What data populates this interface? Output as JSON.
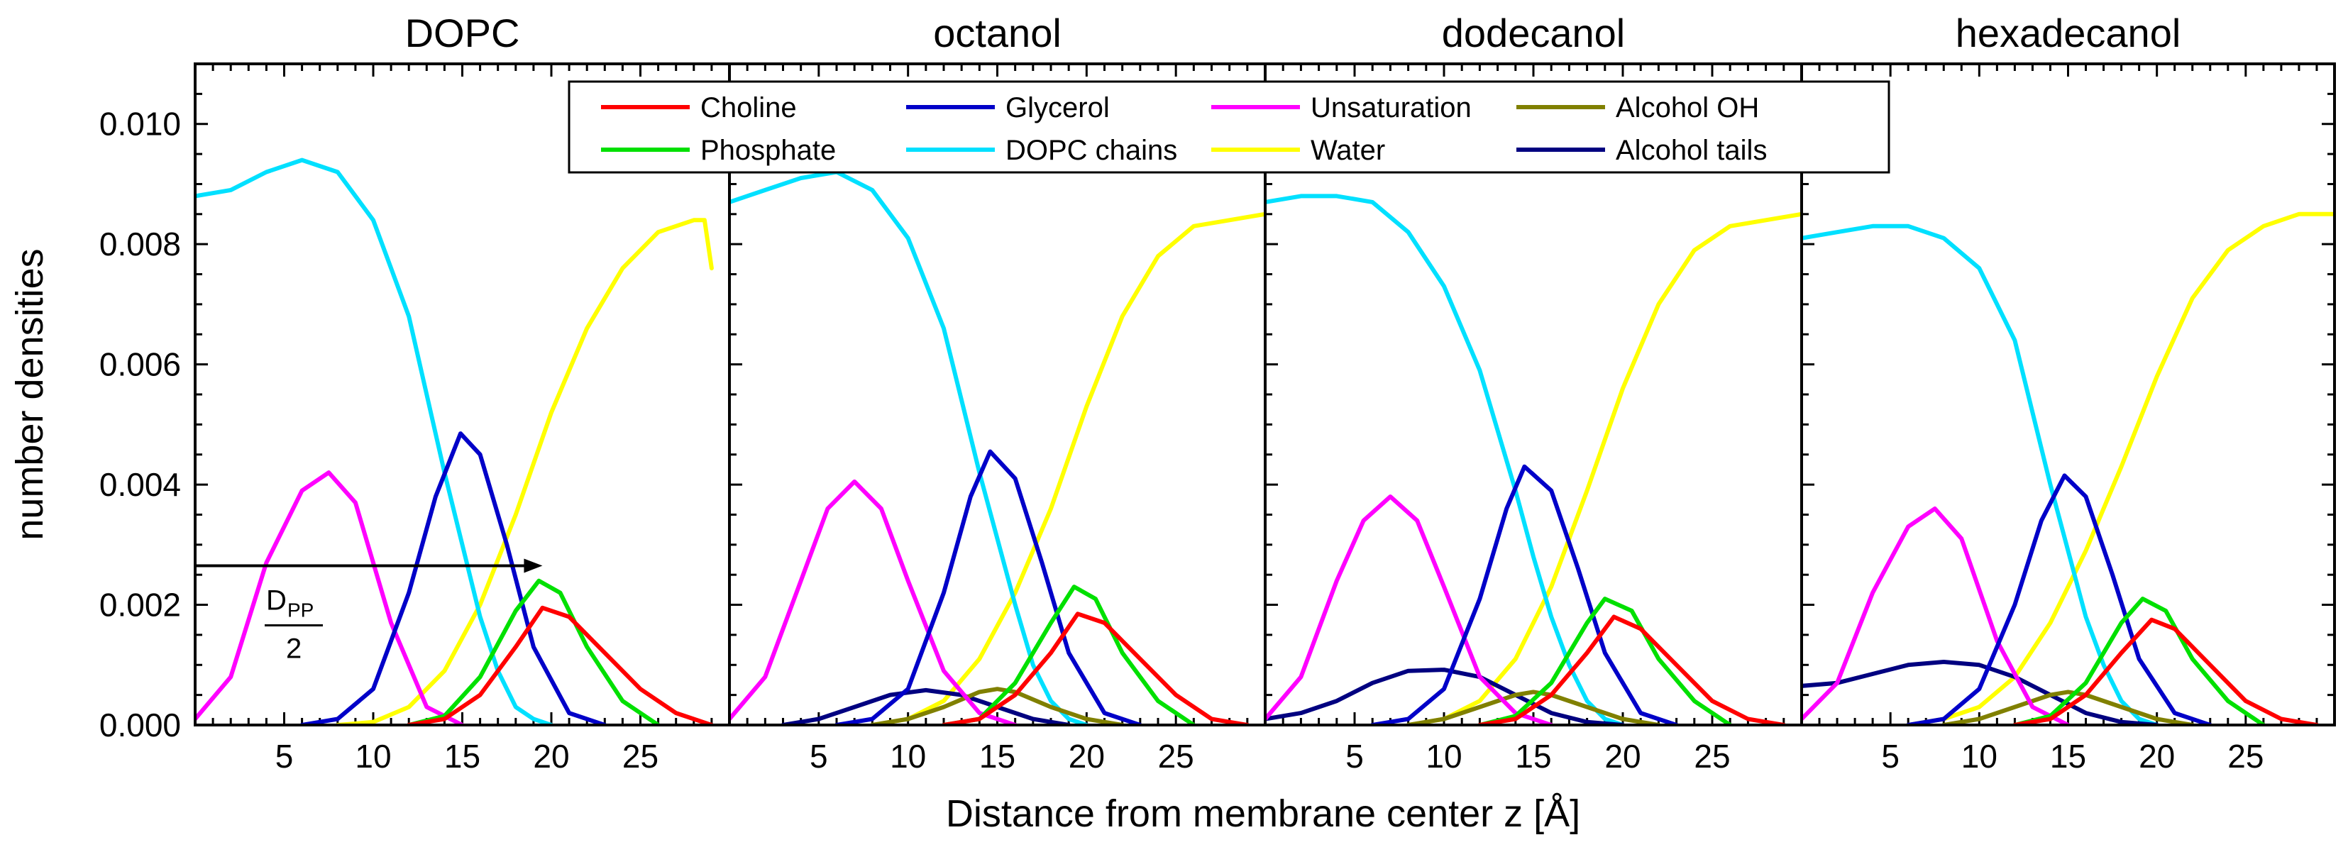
{
  "chart_data": {
    "type": "line",
    "ylabel": "number densities",
    "xlabel": "Distance from membrane center  z  [Å]",
    "xlim": [
      0,
      30
    ],
    "ylim": [
      0,
      0.011
    ],
    "x_ticks": [
      5,
      10,
      15,
      20,
      25
    ],
    "y_ticks": [
      0.0,
      0.002,
      0.004,
      0.006,
      0.008,
      0.01
    ],
    "y_tick_labels": [
      "0.000",
      "0.002",
      "0.004",
      "0.006",
      "0.008",
      "0.010"
    ],
    "x_tick_labels": [
      "5",
      "10",
      "15",
      "20",
      "25"
    ],
    "legend": {
      "placement": "top-center",
      "entries": [
        {
          "key": "choline",
          "label": "Choline",
          "color": "#ff0000"
        },
        {
          "key": "glycerol",
          "label": "Glycerol",
          "color": "#0000c8"
        },
        {
          "key": "unsaturation",
          "label": "Unsaturation",
          "color": "#ff00ff"
        },
        {
          "key": "alcohol_oh",
          "label": "Alcohol OH",
          "color": "#808000"
        },
        {
          "key": "phosphate",
          "label": "Phosphate",
          "color": "#00e000"
        },
        {
          "key": "dopc_chains",
          "label": "DOPC chains",
          "color": "#00e0ff"
        },
        {
          "key": "water",
          "label": "Water",
          "color": "#ffff00"
        },
        {
          "key": "alcohol_tails",
          "label": "Alcohol tails",
          "color": "#000080"
        }
      ]
    },
    "annotation": {
      "numerator": "D",
      "subscript": "PP",
      "denominator": "2",
      "arrow_y": 0.00265,
      "arrow_x_start": 0,
      "arrow_x_end": 19.5
    },
    "panels": [
      {
        "title": "DOPC",
        "series": {
          "choline": {
            "x": [
              12,
              14,
              16,
              18,
              19.5,
              21,
              23,
              25,
              27,
              29
            ],
            "y": [
              0,
              0.0001,
              0.0005,
              0.0013,
              0.00195,
              0.0018,
              0.0012,
              0.0006,
              0.0002,
              0
            ]
          },
          "glycerol": {
            "x": [
              6,
              8,
              10,
              12,
              13.5,
              14.9,
              16,
              17.5,
              19,
              21,
              23
            ],
            "y": [
              0,
              0.0001,
              0.0006,
              0.0022,
              0.0038,
              0.00485,
              0.0045,
              0.003,
              0.0013,
              0.0002,
              0
            ]
          },
          "unsaturation": {
            "x": [
              0,
              2,
              4,
              6,
              7.5,
              9,
              11,
              13,
              15
            ],
            "y": [
              0.0001,
              0.0008,
              0.0027,
              0.0039,
              0.0042,
              0.0037,
              0.0017,
              0.0003,
              0
            ]
          },
          "phosphate": {
            "x": [
              12,
              14,
              16,
              18,
              19.3,
              20.5,
              22,
              24,
              26
            ],
            "y": [
              0,
              0.00015,
              0.0008,
              0.0019,
              0.0024,
              0.0022,
              0.0013,
              0.0004,
              0
            ]
          },
          "dopc_chains": {
            "x": [
              0,
              2,
              4,
              6,
              8,
              10,
              12,
              13,
              14,
              15,
              16,
              17,
              18,
              19,
              20
            ],
            "y": [
              0.0088,
              0.0089,
              0.0092,
              0.0094,
              0.0092,
              0.0084,
              0.0068,
              0.0055,
              0.0042,
              0.003,
              0.0018,
              0.0009,
              0.0003,
              0.0001,
              0
            ]
          },
          "water": {
            "x": [
              8,
              10,
              12,
              14,
              16,
              18,
              20,
              22,
              24,
              26,
              28,
              28.6,
              29
            ],
            "y": [
              0,
              5e-05,
              0.0003,
              0.0009,
              0.002,
              0.0035,
              0.0052,
              0.0066,
              0.0076,
              0.0082,
              0.0084,
              0.0084,
              0.0076
            ]
          }
        }
      },
      {
        "title": "octanol",
        "series": {
          "choline": {
            "x": [
              12,
              14,
              16,
              18,
              19.5,
              21,
              23,
              25,
              27,
              29
            ],
            "y": [
              0,
              0.0001,
              0.0005,
              0.0012,
              0.00185,
              0.0017,
              0.0011,
              0.0005,
              0.0001,
              0
            ]
          },
          "glycerol": {
            "x": [
              6,
              8,
              10,
              12,
              13.5,
              14.6,
              16,
              17.5,
              19,
              21,
              23
            ],
            "y": [
              0,
              0.0001,
              0.0006,
              0.0022,
              0.0038,
              0.00455,
              0.0041,
              0.0027,
              0.0012,
              0.0002,
              0
            ]
          },
          "unsaturation": {
            "x": [
              0,
              2,
              4,
              5.5,
              7,
              8.5,
              10,
              12,
              14,
              16
            ],
            "y": [
              0.0001,
              0.0008,
              0.0024,
              0.0036,
              0.00405,
              0.0036,
              0.0024,
              0.0009,
              0.0002,
              0
            ]
          },
          "phosphate": {
            "x": [
              12,
              14,
              16,
              18,
              19.3,
              20.5,
              22,
              24,
              26
            ],
            "y": [
              0,
              0.0001,
              0.0007,
              0.0017,
              0.0023,
              0.0021,
              0.0012,
              0.0004,
              0
            ]
          },
          "dopc_chains": {
            "x": [
              0,
              2,
              4,
              6,
              8,
              10,
              12,
              13,
              14,
              15,
              16,
              17,
              18,
              19,
              20
            ],
            "y": [
              0.0087,
              0.0089,
              0.0091,
              0.0092,
              0.0089,
              0.0081,
              0.0066,
              0.0054,
              0.0042,
              0.0031,
              0.002,
              0.001,
              0.0004,
              0.0001,
              0
            ]
          },
          "water": {
            "x": [
              8,
              10,
              12,
              14,
              16,
              18,
              20,
              22,
              24,
              26,
              28,
              30
            ],
            "y": [
              0,
              0.0001,
              0.0004,
              0.0011,
              0.0022,
              0.0036,
              0.0053,
              0.0068,
              0.0078,
              0.0083,
              0.0084,
              0.0085
            ]
          },
          "alcohol_oh": {
            "x": [
              8,
              10,
              12,
              14,
              15,
              16,
              18,
              20,
              22
            ],
            "y": [
              0,
              0.0001,
              0.0003,
              0.00055,
              0.0006,
              0.00055,
              0.0003,
              0.0001,
              0
            ]
          },
          "alcohol_tails": {
            "x": [
              3,
              5,
              7,
              9,
              11,
              13,
              15,
              17,
              19
            ],
            "y": [
              0,
              0.0001,
              0.0003,
              0.0005,
              0.00058,
              0.0005,
              0.0003,
              0.0001,
              0
            ]
          }
        }
      },
      {
        "title": "dodecanol",
        "series": {
          "choline": {
            "x": [
              12,
              14,
              16,
              18,
              19.5,
              21,
              23,
              25,
              27,
              29
            ],
            "y": [
              0,
              0.0001,
              0.0005,
              0.0012,
              0.0018,
              0.0016,
              0.001,
              0.0004,
              0.0001,
              0
            ]
          },
          "glycerol": {
            "x": [
              6,
              8,
              10,
              12,
              13.5,
              14.5,
              16,
              17.5,
              19,
              21,
              23
            ],
            "y": [
              0,
              0.0001,
              0.0006,
              0.0021,
              0.0036,
              0.0043,
              0.0039,
              0.0026,
              0.0012,
              0.0002,
              0
            ]
          },
          "unsaturation": {
            "x": [
              0,
              2,
              4,
              5.5,
              7,
              8.5,
              10,
              12,
              14,
              16
            ],
            "y": [
              0.0001,
              0.0008,
              0.0024,
              0.0034,
              0.0038,
              0.0034,
              0.0023,
              0.0008,
              0.0002,
              0
            ]
          },
          "phosphate": {
            "x": [
              12,
              14,
              16,
              18,
              19,
              20.5,
              22,
              24,
              26
            ],
            "y": [
              0,
              0.00015,
              0.0007,
              0.0017,
              0.0021,
              0.0019,
              0.0011,
              0.0004,
              0
            ]
          },
          "dopc_chains": {
            "x": [
              0,
              2,
              4,
              6,
              8,
              10,
              12,
              13,
              14,
              15,
              16,
              17,
              18,
              19,
              20
            ],
            "y": [
              0.0087,
              0.0088,
              0.0088,
              0.0087,
              0.0082,
              0.0073,
              0.0059,
              0.0049,
              0.0039,
              0.0028,
              0.0018,
              0.001,
              0.0004,
              0.0001,
              0
            ]
          },
          "water": {
            "x": [
              8,
              10,
              12,
              14,
              16,
              18,
              20,
              22,
              24,
              26,
              28,
              30
            ],
            "y": [
              0,
              0.0001,
              0.0004,
              0.0011,
              0.0023,
              0.0039,
              0.0056,
              0.007,
              0.0079,
              0.0083,
              0.0084,
              0.0085
            ]
          },
          "alcohol_oh": {
            "x": [
              8,
              10,
              12,
              14,
              15,
              16,
              18,
              20,
              22
            ],
            "y": [
              0,
              0.0001,
              0.0003,
              0.0005,
              0.00055,
              0.0005,
              0.0003,
              0.0001,
              0
            ]
          },
          "alcohol_tails": {
            "x": [
              0,
              2,
              4,
              6,
              8,
              10,
              12,
              14,
              16,
              18,
              20
            ],
            "y": [
              0.0001,
              0.0002,
              0.0004,
              0.0007,
              0.0009,
              0.00092,
              0.0008,
              0.0005,
              0.0002,
              5e-05,
              0
            ]
          }
        }
      },
      {
        "title": "hexadecanol",
        "series": {
          "choline": {
            "x": [
              12,
              14,
              16,
              18,
              19.7,
              21,
              23,
              25,
              27,
              29
            ],
            "y": [
              0,
              0.0001,
              0.0005,
              0.0012,
              0.00175,
              0.0016,
              0.001,
              0.0004,
              0.0001,
              0
            ]
          },
          "glycerol": {
            "x": [
              6,
              8,
              10,
              12,
              13.5,
              14.8,
              16,
              17.5,
              19,
              21,
              23
            ],
            "y": [
              0,
              0.0001,
              0.0006,
              0.002,
              0.0034,
              0.00415,
              0.0038,
              0.0025,
              0.0011,
              0.0002,
              0
            ]
          },
          "unsaturation": {
            "x": [
              0,
              2,
              4,
              6,
              7.5,
              9,
              11,
              13,
              15
            ],
            "y": [
              0.0001,
              0.0007,
              0.0022,
              0.0033,
              0.0036,
              0.0031,
              0.0014,
              0.0003,
              0
            ]
          },
          "phosphate": {
            "x": [
              12,
              14,
              16,
              18,
              19.2,
              20.5,
              22,
              24,
              26
            ],
            "y": [
              0,
              0.00015,
              0.0007,
              0.0017,
              0.0021,
              0.0019,
              0.0011,
              0.0004,
              0
            ]
          },
          "dopc_chains": {
            "x": [
              0,
              2,
              4,
              6,
              8,
              10,
              12,
              13,
              14,
              15,
              16,
              17,
              18,
              19,
              20
            ],
            "y": [
              0.0081,
              0.0082,
              0.0083,
              0.0083,
              0.0081,
              0.0076,
              0.0064,
              0.0052,
              0.004,
              0.0029,
              0.0018,
              0.001,
              0.0004,
              0.0001,
              0
            ]
          },
          "water": {
            "x": [
              6,
              8,
              10,
              12,
              14,
              16,
              18,
              20,
              22,
              24,
              26,
              28,
              30
            ],
            "y": [
              0,
              0.0001,
              0.0003,
              0.0008,
              0.0017,
              0.0029,
              0.0043,
              0.0058,
              0.0071,
              0.0079,
              0.0083,
              0.0085,
              0.0085
            ]
          },
          "alcohol_oh": {
            "x": [
              8,
              10,
              12,
              14,
              15,
              16,
              18,
              20,
              22
            ],
            "y": [
              0,
              0.0001,
              0.0003,
              0.0005,
              0.00055,
              0.0005,
              0.0003,
              0.0001,
              0
            ]
          },
          "alcohol_tails": {
            "x": [
              0,
              2,
              4,
              6,
              8,
              10,
              12,
              14,
              16,
              18,
              20
            ],
            "y": [
              0.00065,
              0.0007,
              0.00085,
              0.001,
              0.00105,
              0.001,
              0.0008,
              0.0005,
              0.0002,
              5e-05,
              0
            ]
          }
        }
      }
    ]
  }
}
